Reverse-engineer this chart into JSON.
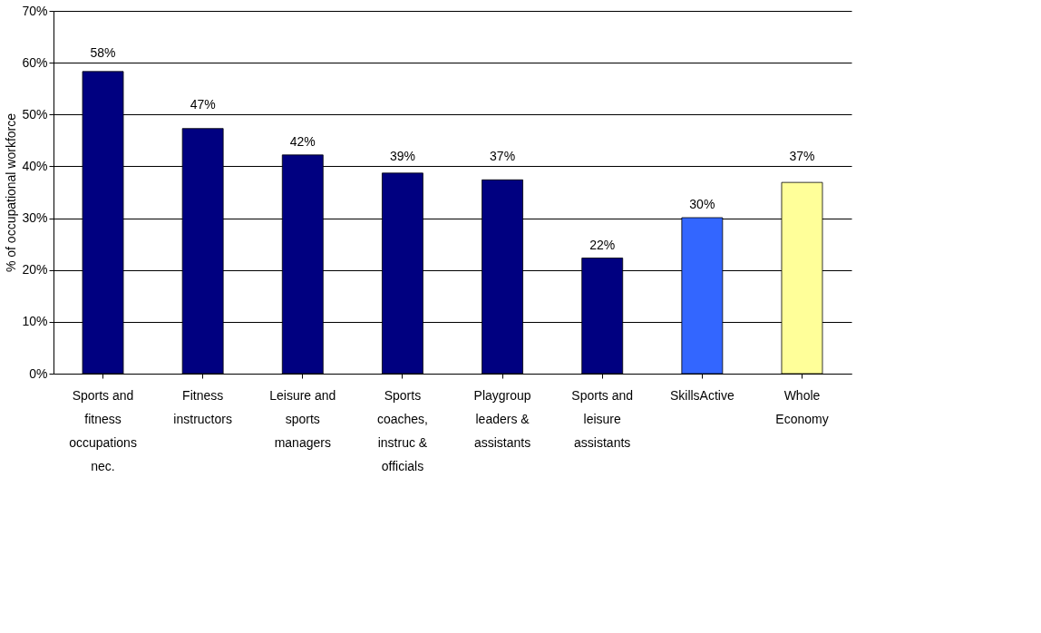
{
  "chart_data": {
    "type": "bar",
    "ylabel": "% of occupational workforce",
    "categories": [
      "Sports and fitness occupations nec.",
      "Fitness instructors",
      "Leisure and sports managers",
      "Sports coaches, instruc & officials",
      "Playgroup leaders & assistants",
      "Sports and leisure assistants",
      "SkillsActive",
      "Whole Economy"
    ],
    "values": [
      58.3,
      47.3,
      42.2,
      38.7,
      37.4,
      22.3,
      30.1,
      36.9
    ],
    "value_labels": [
      "58%",
      "47%",
      "42%",
      "39%",
      "37%",
      "22%",
      "30%",
      "37%"
    ],
    "colors": [
      "#000080",
      "#000080",
      "#000080",
      "#000080",
      "#000080",
      "#000080",
      "#3366ff",
      "#ffff99"
    ],
    "ylim": [
      0,
      70
    ],
    "yticks": [
      {
        "value": 0,
        "label": "0%"
      },
      {
        "value": 10,
        "label": "10%"
      },
      {
        "value": 20,
        "label": "20%"
      },
      {
        "value": 30,
        "label": "30%"
      },
      {
        "value": 40,
        "label": "40%"
      },
      {
        "value": 50,
        "label": "50%"
      },
      {
        "value": 60,
        "label": "60%"
      },
      {
        "value": 70,
        "label": "70%"
      }
    ],
    "grid": "y"
  }
}
